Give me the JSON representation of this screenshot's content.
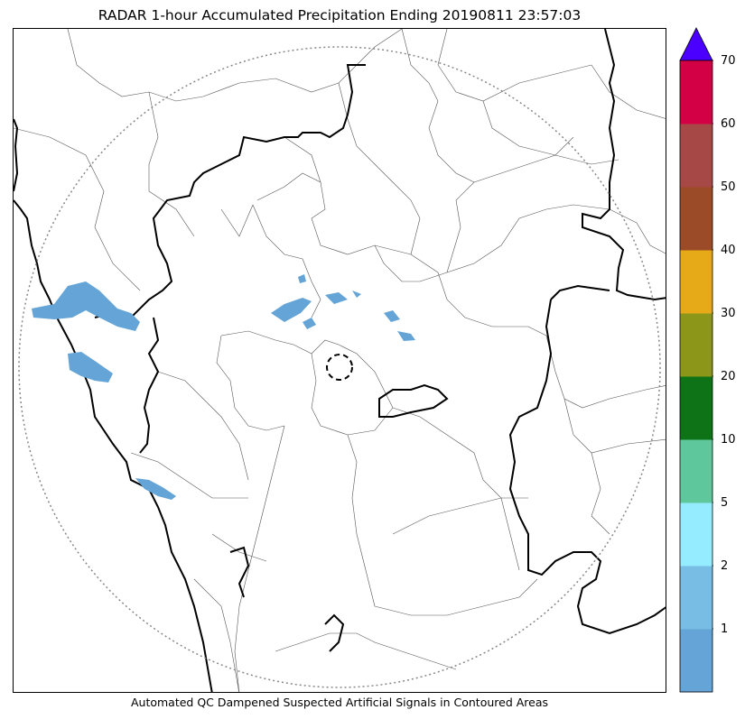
{
  "title": "RADAR 1-hour Accumulated Precipitation Ending 20190811 23:57:03",
  "footer_note": "Automated QC Dampened Suspected Artificial Signals in Contoured Areas",
  "colorbar": {
    "extend": "max",
    "extend_color": "#4b00ff",
    "bins": [
      {
        "color": "#64a4d6"
      },
      {
        "color": "#78bde4"
      },
      {
        "color": "#96ecff"
      },
      {
        "color": "#5ec79c"
      },
      {
        "color": "#0e7317"
      },
      {
        "color": "#8c9618"
      },
      {
        "color": "#e6aa18"
      },
      {
        "color": "#9b4b28"
      },
      {
        "color": "#a64946"
      },
      {
        "color": "#d40046"
      }
    ],
    "ticks": [
      {
        "label": "1",
        "index": 1
      },
      {
        "label": "2",
        "index": 2
      },
      {
        "label": "5",
        "index": 3
      },
      {
        "label": "10",
        "index": 4
      },
      {
        "label": "20",
        "index": 5
      },
      {
        "label": "30",
        "index": 6
      },
      {
        "label": "40",
        "index": 7
      },
      {
        "label": "50",
        "index": 8
      },
      {
        "label": "60",
        "index": 9
      },
      {
        "label": "70",
        "index": 10
      }
    ]
  },
  "map": {
    "radar_range_ring": "dotted gray",
    "radar_site_marker": "dashed black circle",
    "precip_color": "#64a4d6"
  }
}
